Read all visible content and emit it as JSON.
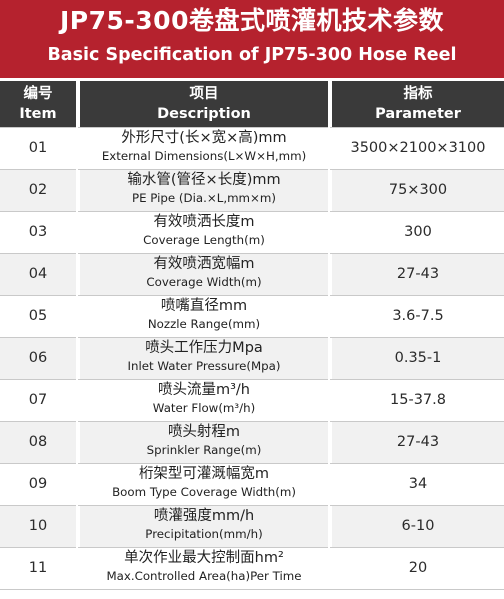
{
  "title": {
    "zh": "JP75-300卷盘式喷灌机技术参数",
    "en": "Basic Specification of JP75-300 Hose Reel"
  },
  "colors": {
    "banner": "#b5222e",
    "header": "#3a3a3a",
    "stripe": "#f1f1f1"
  },
  "headers": {
    "item": {
      "zh": "编号",
      "en": "Item"
    },
    "description": {
      "zh": "项目",
      "en": "Description"
    },
    "parameter": {
      "zh": "指标",
      "en": "Parameter"
    }
  },
  "rows": [
    {
      "item": "01",
      "zh": "外形尺寸(长×宽×高)mm",
      "en": "External Dimensions(L×W×H,mm)",
      "value": "3500×2100×3100"
    },
    {
      "item": "02",
      "zh": "输水管(管径×长度)mm",
      "en": "PE Pipe (Dia.×L,mm×m)",
      "value": "75×300"
    },
    {
      "item": "03",
      "zh": "有效喷洒长度m",
      "en": "Coverage Length(m)",
      "value": "300"
    },
    {
      "item": "04",
      "zh": "有效喷洒宽幅m",
      "en": "Coverage Width(m)",
      "value": "27-43"
    },
    {
      "item": "05",
      "zh": "喷嘴直径mm",
      "en": "Nozzle Range(mm)",
      "value": "3.6-7.5"
    },
    {
      "item": "06",
      "zh": "喷头工作压力Mpa",
      "en": "Inlet Water Pressure(Mpa)",
      "value": "0.35-1"
    },
    {
      "item": "07",
      "zh": "喷头流量m³/h",
      "en": "Water Flow(m³/h)",
      "value": "15-37.8"
    },
    {
      "item": "08",
      "zh": "喷头射程m",
      "en": "Sprinkler Range(m)",
      "value": "27-43"
    },
    {
      "item": "09",
      "zh": "桁架型可灌溉幅宽m",
      "en": "Boom Type Coverage Width(m)",
      "value": "34"
    },
    {
      "item": "10",
      "zh": "喷灌强度mm/h",
      "en": "Precipitation(mm/h)",
      "value": "6-10"
    },
    {
      "item": "11",
      "zh": "单次作业最大控制面hm²",
      "en": "Max.Controlled Area(ha)Per Time",
      "value": "20"
    }
  ]
}
